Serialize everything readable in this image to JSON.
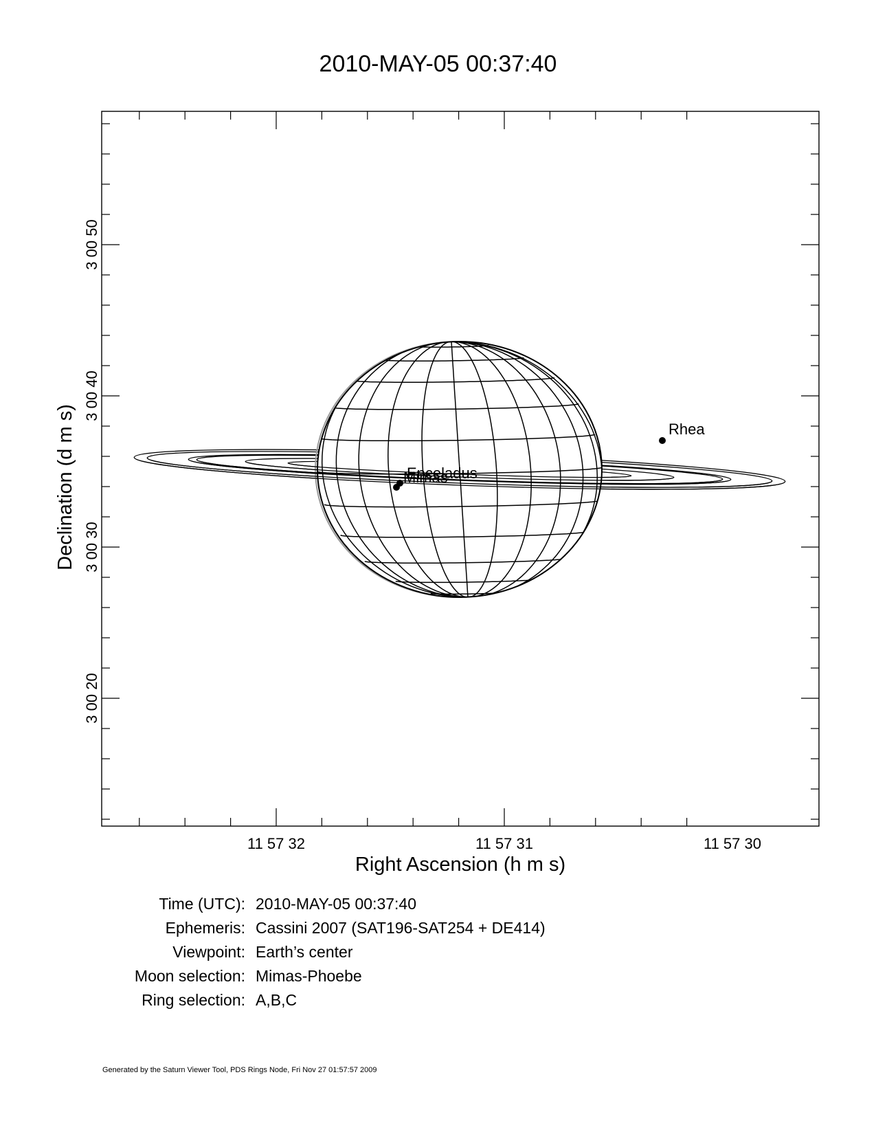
{
  "title": "2010-MAY-05 00:37:40",
  "chart_data": {
    "type": "scatter",
    "xlabel": "Right Ascension (h m s)",
    "ylabel": "Declination (d m s)",
    "x_tick_labels": [
      "11 57 32",
      "11 57 31",
      "11 57 30"
    ],
    "y_tick_labels": [
      "3 00 50",
      "3 00 40",
      "3 00 30",
      "3 00 20"
    ],
    "x_direction": "right ascension decreasing to the right",
    "planet": "Saturn (shown as latitude/longitude grid sphere with rings A,B,C)",
    "moons": [
      {
        "name": "Rhea",
        "ra": "11 57 30.3",
        "dec": "3 00 37.0"
      },
      {
        "name": "Enceladus",
        "ra": "11 57 31.4",
        "dec": "3 00 34.3"
      },
      {
        "name": "Mimas",
        "ra": "11 57 31.4",
        "dec": "3 00 34.0"
      }
    ],
    "grid": false
  },
  "info": [
    {
      "key": "Time (UTC):",
      "value": "2010-MAY-05 00:37:40"
    },
    {
      "key": "Ephemeris:",
      "value": "Cassini 2007 (SAT196-SAT254 + DE414)"
    },
    {
      "key": "Viewpoint:",
      "value": "Earth’s center"
    },
    {
      "key": "Moon selection:",
      "value": "Mimas-Phoebe"
    },
    {
      "key": "Ring selection:",
      "value": "A,B,C"
    }
  ],
  "footer": "Generated by the Saturn Viewer Tool, PDS Rings Node, Fri Nov 27 01:57:57 2009"
}
